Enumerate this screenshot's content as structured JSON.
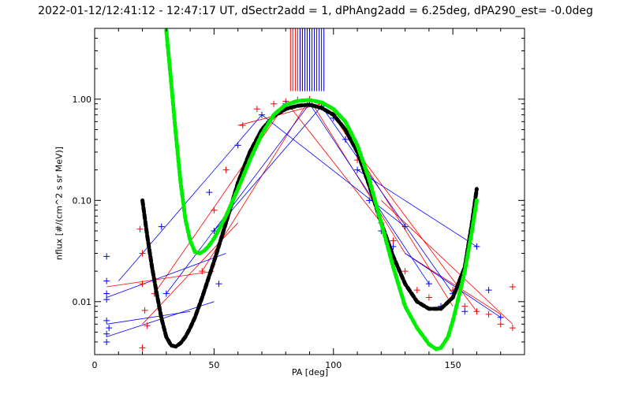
{
  "chart_data": {
    "type": "scatter",
    "title": "2022-01-12/12:41:12 - 12:47:17 UT, dSectr2add = 1, dPhAng2add = 6.25deg, dPA290_est=  -0.0deg",
    "xlabel": "PA [deg]",
    "ylabel": "nflux [#/(cm^2 s sr MeV)]",
    "xlim": [
      0,
      180
    ],
    "ylim": [
      0.003,
      5.0
    ],
    "yscale": "log",
    "grid": false,
    "x_ticks": [
      0,
      50,
      100,
      150
    ],
    "x_tick_labels": [
      "0",
      "50",
      "100",
      "150"
    ],
    "y_ticks": [
      0.01,
      0.1,
      1.0
    ],
    "y_tick_labels": [
      "0.01",
      "0.10",
      "1.00"
    ],
    "colors": {
      "red": "#ff0000",
      "blue": "#0000ff",
      "green": "#00ee00",
      "black": "#000000"
    },
    "series": [
      {
        "color": "red",
        "marker": "+",
        "x": [
          19,
          20,
          21,
          22,
          20,
          45,
          50,
          55,
          62,
          68,
          75,
          80,
          85,
          90,
          95,
          100,
          105,
          110,
          115,
          120,
          125,
          130,
          135,
          140,
          145,
          150,
          155,
          160,
          165,
          170,
          175,
          175,
          20,
          25
        ],
        "y": [
          0.052,
          0.03,
          0.0082,
          0.0058,
          0.0035,
          0.02,
          0.08,
          0.2,
          0.55,
          0.8,
          0.9,
          0.95,
          0.98,
          1.0,
          0.9,
          0.7,
          0.4,
          0.25,
          0.15,
          0.06,
          0.04,
          0.02,
          0.013,
          0.011,
          0.009,
          0.013,
          0.009,
          0.008,
          0.0075,
          0.006,
          0.014,
          0.0055,
          0.015,
          0.012
        ]
      },
      {
        "color": "blue",
        "marker": "+",
        "x": [
          5,
          5,
          5,
          5,
          5,
          5,
          5,
          6,
          28,
          30,
          48,
          50,
          52,
          60,
          70,
          80,
          90,
          95,
          100,
          105,
          110,
          115,
          120,
          125,
          130,
          140,
          145,
          150,
          155,
          160,
          165,
          170
        ],
        "y": [
          0.028,
          0.016,
          0.012,
          0.0105,
          0.0065,
          0.0048,
          0.004,
          0.0055,
          0.055,
          0.012,
          0.12,
          0.05,
          0.015,
          0.35,
          0.7,
          0.9,
          0.9,
          0.85,
          0.65,
          0.4,
          0.2,
          0.1,
          0.05,
          0.035,
          0.055,
          0.015,
          0.009,
          0.012,
          0.008,
          0.035,
          0.013,
          0.007
        ]
      }
    ],
    "lines": [
      {
        "color": "red",
        "x": [
          5,
          50,
          20,
          60,
          25,
          80,
          45,
          90,
          60,
          95,
          80,
          120,
          90,
          130,
          100,
          150,
          110,
          160,
          120,
          175,
          130,
          170
        ],
        "y": [
          0.014,
          0.02,
          0.006,
          0.06,
          0.012,
          0.9,
          0.02,
          1.0,
          0.55,
          0.9,
          0.95,
          0.06,
          1.0,
          0.03,
          0.7,
          0.009,
          0.3,
          0.008,
          0.1,
          0.006,
          0.03,
          0.0075
        ]
      },
      {
        "color": "blue",
        "x": [
          5,
          50,
          5,
          55,
          10,
          70,
          30,
          90,
          50,
          95,
          70,
          130,
          90,
          140,
          95,
          150,
          110,
          160,
          130,
          170,
          5,
          40
        ],
        "y": [
          0.0045,
          0.01,
          0.011,
          0.03,
          0.016,
          0.7,
          0.012,
          0.9,
          0.05,
          0.85,
          0.7,
          0.055,
          0.9,
          0.015,
          0.85,
          0.012,
          0.2,
          0.035,
          0.03,
          0.007,
          0.006,
          0.008
        ]
      }
    ],
    "fits": [
      {
        "color": "black",
        "x": [
          20,
          22,
          24,
          26,
          28,
          30,
          32,
          34,
          36,
          38,
          40,
          42,
          45,
          48,
          50,
          55,
          60,
          65,
          70,
          75,
          80,
          85,
          90,
          95,
          100,
          105,
          110,
          115,
          120,
          125,
          130,
          135,
          140,
          145,
          150,
          155,
          158,
          160
        ],
        "y": [
          0.1,
          0.045,
          0.022,
          0.012,
          0.0068,
          0.0045,
          0.0037,
          0.0036,
          0.0039,
          0.0045,
          0.0055,
          0.007,
          0.011,
          0.018,
          0.025,
          0.06,
          0.15,
          0.3,
          0.5,
          0.68,
          0.8,
          0.86,
          0.88,
          0.82,
          0.7,
          0.5,
          0.3,
          0.14,
          0.06,
          0.028,
          0.015,
          0.01,
          0.0085,
          0.0085,
          0.011,
          0.022,
          0.06,
          0.13
        ]
      },
      {
        "color": "green",
        "x": [
          30,
          32,
          34,
          36,
          38,
          40,
          42,
          44,
          46,
          48,
          50,
          55,
          60,
          65,
          70,
          75,
          80,
          85,
          90,
          95,
          100,
          105,
          110,
          115,
          120,
          125,
          130,
          135,
          140,
          143,
          145,
          148,
          150,
          152,
          155,
          158,
          160
        ],
        "y": [
          4.8,
          1.5,
          0.45,
          0.15,
          0.065,
          0.04,
          0.031,
          0.03,
          0.032,
          0.036,
          0.042,
          0.07,
          0.13,
          0.25,
          0.45,
          0.7,
          0.88,
          0.96,
          0.98,
          0.93,
          0.8,
          0.6,
          0.35,
          0.16,
          0.06,
          0.022,
          0.009,
          0.0055,
          0.0038,
          0.0034,
          0.0035,
          0.0045,
          0.0065,
          0.01,
          0.02,
          0.05,
          0.1
        ]
      }
    ],
    "vertical_lines": [
      {
        "color": "red",
        "x": [
          82,
          83,
          84,
          85,
          86,
          87,
          88,
          89,
          90
        ]
      },
      {
        "color": "blue",
        "x": [
          86,
          87,
          88,
          89,
          90,
          91,
          92,
          93,
          94,
          95,
          96
        ]
      }
    ]
  }
}
